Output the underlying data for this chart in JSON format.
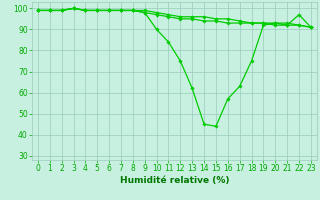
{
  "xlabel": "Humidité relative (%)",
  "x": [
    0,
    1,
    2,
    3,
    4,
    5,
    6,
    7,
    8,
    9,
    10,
    11,
    12,
    13,
    14,
    15,
    16,
    17,
    18,
    19,
    20,
    21,
    22,
    23
  ],
  "series": [
    [
      99,
      99,
      99,
      100,
      99,
      99,
      99,
      99,
      99,
      98,
      90,
      84,
      75,
      62,
      45,
      44,
      57,
      63,
      75,
      92,
      93,
      92,
      97,
      91
    ],
    [
      99,
      99,
      99,
      100,
      99,
      99,
      99,
      99,
      99,
      99,
      98,
      97,
      96,
      96,
      96,
      95,
      95,
      94,
      93,
      93,
      93,
      93,
      92,
      91
    ],
    [
      99,
      99,
      99,
      100,
      99,
      99,
      99,
      99,
      99,
      98,
      97,
      96,
      95,
      95,
      94,
      94,
      93,
      93,
      93,
      93,
      92,
      92,
      92,
      91
    ]
  ],
  "line_color": "#00CC00",
  "marker": "D",
  "marker_size": 1.8,
  "bg_color": "#C8F0E0",
  "grid_color": "#99CCBB",
  "ylim": [
    28,
    103
  ],
  "xlim": [
    -0.5,
    23.5
  ],
  "yticks": [
    30,
    40,
    50,
    60,
    70,
    80,
    90,
    100
  ],
  "xticks": [
    0,
    1,
    2,
    3,
    4,
    5,
    6,
    7,
    8,
    9,
    10,
    11,
    12,
    13,
    14,
    15,
    16,
    17,
    18,
    19,
    20,
    21,
    22,
    23
  ],
  "tick_color": "#00AA00",
  "label_color": "#007700",
  "tick_fontsize": 5.5,
  "xlabel_fontsize": 6.5,
  "line_width": 0.9
}
